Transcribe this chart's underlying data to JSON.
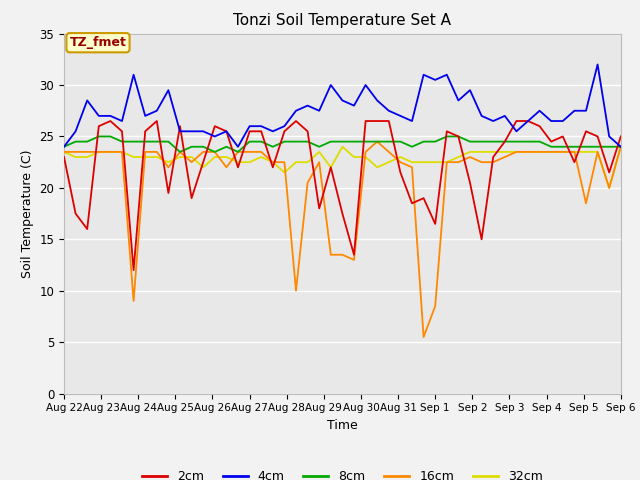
{
  "title": "Tonzi Soil Temperature Set A",
  "xlabel": "Time",
  "ylabel": "Soil Temperature (C)",
  "ylim": [
    0,
    35
  ],
  "background_color": "#f2f2f2",
  "plot_bg_color": "#e8e8e8",
  "grid_color": "#ffffff",
  "annotation_label": "TZ_fmet",
  "annotation_color": "#990000",
  "annotation_bg": "#ffffcc",
  "annotation_border": "#cc9900",
  "x_tick_labels": [
    "Aug 22",
    "Aug 23",
    "Aug 24",
    "Aug 25",
    "Aug 26",
    "Aug 27",
    "Aug 28",
    "Aug 29",
    "Aug 30",
    "Aug 31",
    "Sep 1",
    "Sep 2",
    "Sep 3",
    "Sep 4",
    "Sep 5",
    "Sep 6"
  ],
  "series": {
    "2cm": {
      "color": "#dd0000",
      "values": [
        23.0,
        17.5,
        16.0,
        26.0,
        26.5,
        25.5,
        12.0,
        25.5,
        26.5,
        19.5,
        26.0,
        19.0,
        22.5,
        26.0,
        25.5,
        22.0,
        25.5,
        25.5,
        22.0,
        25.5,
        26.5,
        25.5,
        18.0,
        22.0,
        17.5,
        13.5,
        26.5,
        26.5,
        26.5,
        21.5,
        18.5,
        19.0,
        16.5,
        25.5,
        25.0,
        20.5,
        15.0,
        23.0,
        24.5,
        26.5,
        26.5,
        26.0,
        24.5,
        25.0,
        22.5,
        25.5,
        25.0,
        21.5,
        25.0
      ]
    },
    "4cm": {
      "color": "#0000ee",
      "values": [
        24.0,
        25.5,
        28.5,
        27.0,
        27.0,
        26.5,
        31.0,
        27.0,
        27.5,
        29.5,
        25.5,
        25.5,
        25.5,
        25.0,
        25.5,
        24.0,
        26.0,
        26.0,
        25.5,
        26.0,
        27.5,
        28.0,
        27.5,
        30.0,
        28.5,
        28.0,
        30.0,
        28.5,
        27.5,
        27.0,
        26.5,
        31.0,
        30.5,
        31.0,
        28.5,
        29.5,
        27.0,
        26.5,
        27.0,
        25.5,
        26.5,
        27.5,
        26.5,
        26.5,
        27.5,
        27.5,
        32.0,
        25.0,
        24.0
      ]
    },
    "8cm": {
      "color": "#00aa00",
      "values": [
        24.0,
        24.5,
        24.5,
        25.0,
        25.0,
        24.5,
        24.5,
        24.5,
        24.5,
        24.5,
        23.5,
        24.0,
        24.0,
        23.5,
        24.0,
        23.5,
        24.5,
        24.5,
        24.0,
        24.5,
        24.5,
        24.5,
        24.0,
        24.5,
        24.5,
        24.5,
        24.5,
        24.5,
        24.5,
        24.5,
        24.0,
        24.5,
        24.5,
        25.0,
        25.0,
        24.5,
        24.5,
        24.5,
        24.5,
        24.5,
        24.5,
        24.5,
        24.0,
        24.0,
        24.0,
        24.0,
        24.0,
        24.0,
        24.0
      ]
    },
    "16cm": {
      "color": "#ff8800",
      "values": [
        23.5,
        23.5,
        23.5,
        23.5,
        23.5,
        23.5,
        9.0,
        23.5,
        23.5,
        22.0,
        23.5,
        22.5,
        23.5,
        23.5,
        22.0,
        23.5,
        23.5,
        23.5,
        22.5,
        22.5,
        10.0,
        20.5,
        22.5,
        13.5,
        13.5,
        13.0,
        23.5,
        24.5,
        23.5,
        22.5,
        22.0,
        5.5,
        8.5,
        22.5,
        22.5,
        23.0,
        22.5,
        22.5,
        23.0,
        23.5,
        23.5,
        23.5,
        23.5,
        23.5,
        23.5,
        18.5,
        23.5,
        20.0,
        24.0
      ]
    },
    "32cm": {
      "color": "#dddd00",
      "values": [
        23.5,
        23.0,
        23.0,
        23.5,
        23.5,
        23.5,
        23.0,
        23.0,
        23.0,
        22.5,
        23.0,
        23.0,
        22.0,
        23.0,
        23.0,
        22.5,
        22.5,
        23.0,
        22.5,
        21.5,
        22.5,
        22.5,
        23.5,
        22.0,
        24.0,
        23.0,
        23.0,
        22.0,
        22.5,
        23.0,
        22.5,
        22.5,
        22.5,
        22.5,
        23.0,
        23.5,
        23.5,
        23.5,
        23.5,
        23.5,
        23.5,
        23.5,
        23.5,
        23.5,
        23.5,
        23.5,
        23.5,
        20.0,
        24.0
      ]
    }
  }
}
